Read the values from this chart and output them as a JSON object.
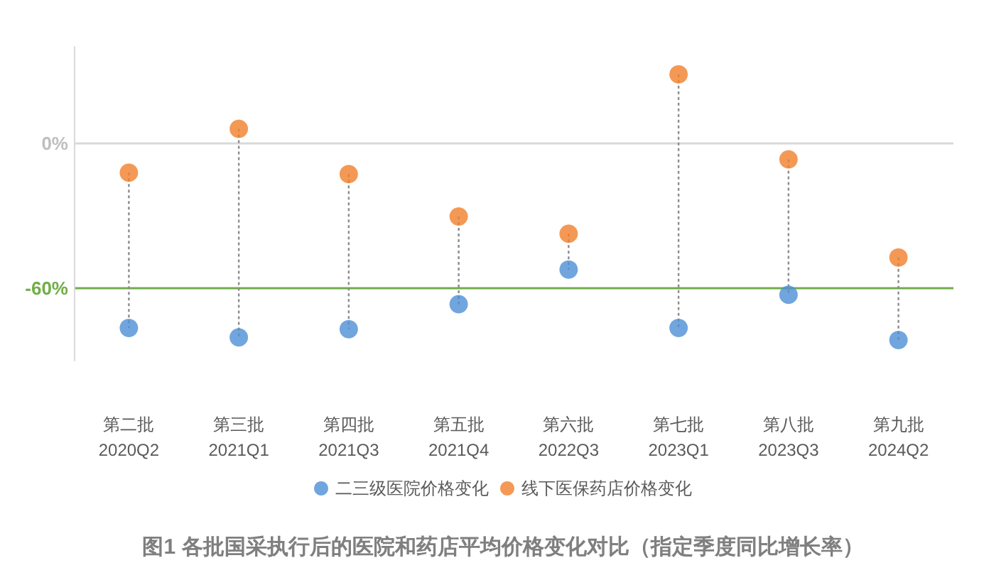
{
  "chart_data": {
    "type": "lollipop",
    "categories": [
      "第二批\n2020Q2",
      "第三批\n2021Q1",
      "第四批\n2021Q3",
      "第五批\n2021Q4",
      "第六批\n2022Q3",
      "第七批\n2023Q1",
      "第八批\n2023Q3",
      "第九批\n2024Q2"
    ],
    "series": [
      {
        "name": "二三级医院价格变化",
        "color": "#4e8fd6",
        "values": [
          -76.5,
          -80.4,
          -77,
          -66.6,
          -52.3,
          -76.5,
          -62.7,
          -81.5
        ]
      },
      {
        "name": "线下医保药店价格变化",
        "color": "#f07f2a",
        "values": [
          -12.1,
          6,
          -12.7,
          -30.3,
          -37.4,
          28.6,
          -6.6,
          -47.3
        ]
      }
    ],
    "ylim": [
      -90,
      40
    ],
    "yticks": [
      {
        "value": 0,
        "label": "0%"
      },
      {
        "value": -60,
        "label": "-60%"
      }
    ],
    "marker": "circle",
    "line_style": "dotted",
    "legend": "bottom",
    "ref_lines": [
      {
        "axis": "y",
        "value": 0,
        "color": "#d9d9d9"
      },
      {
        "axis": "y",
        "value": -60,
        "color": "#70ad47"
      }
    ],
    "annotations": [
      "图1 各批国采执行后的医院和药店平均价格变化对比（指定季度同比增长率）"
    ]
  }
}
